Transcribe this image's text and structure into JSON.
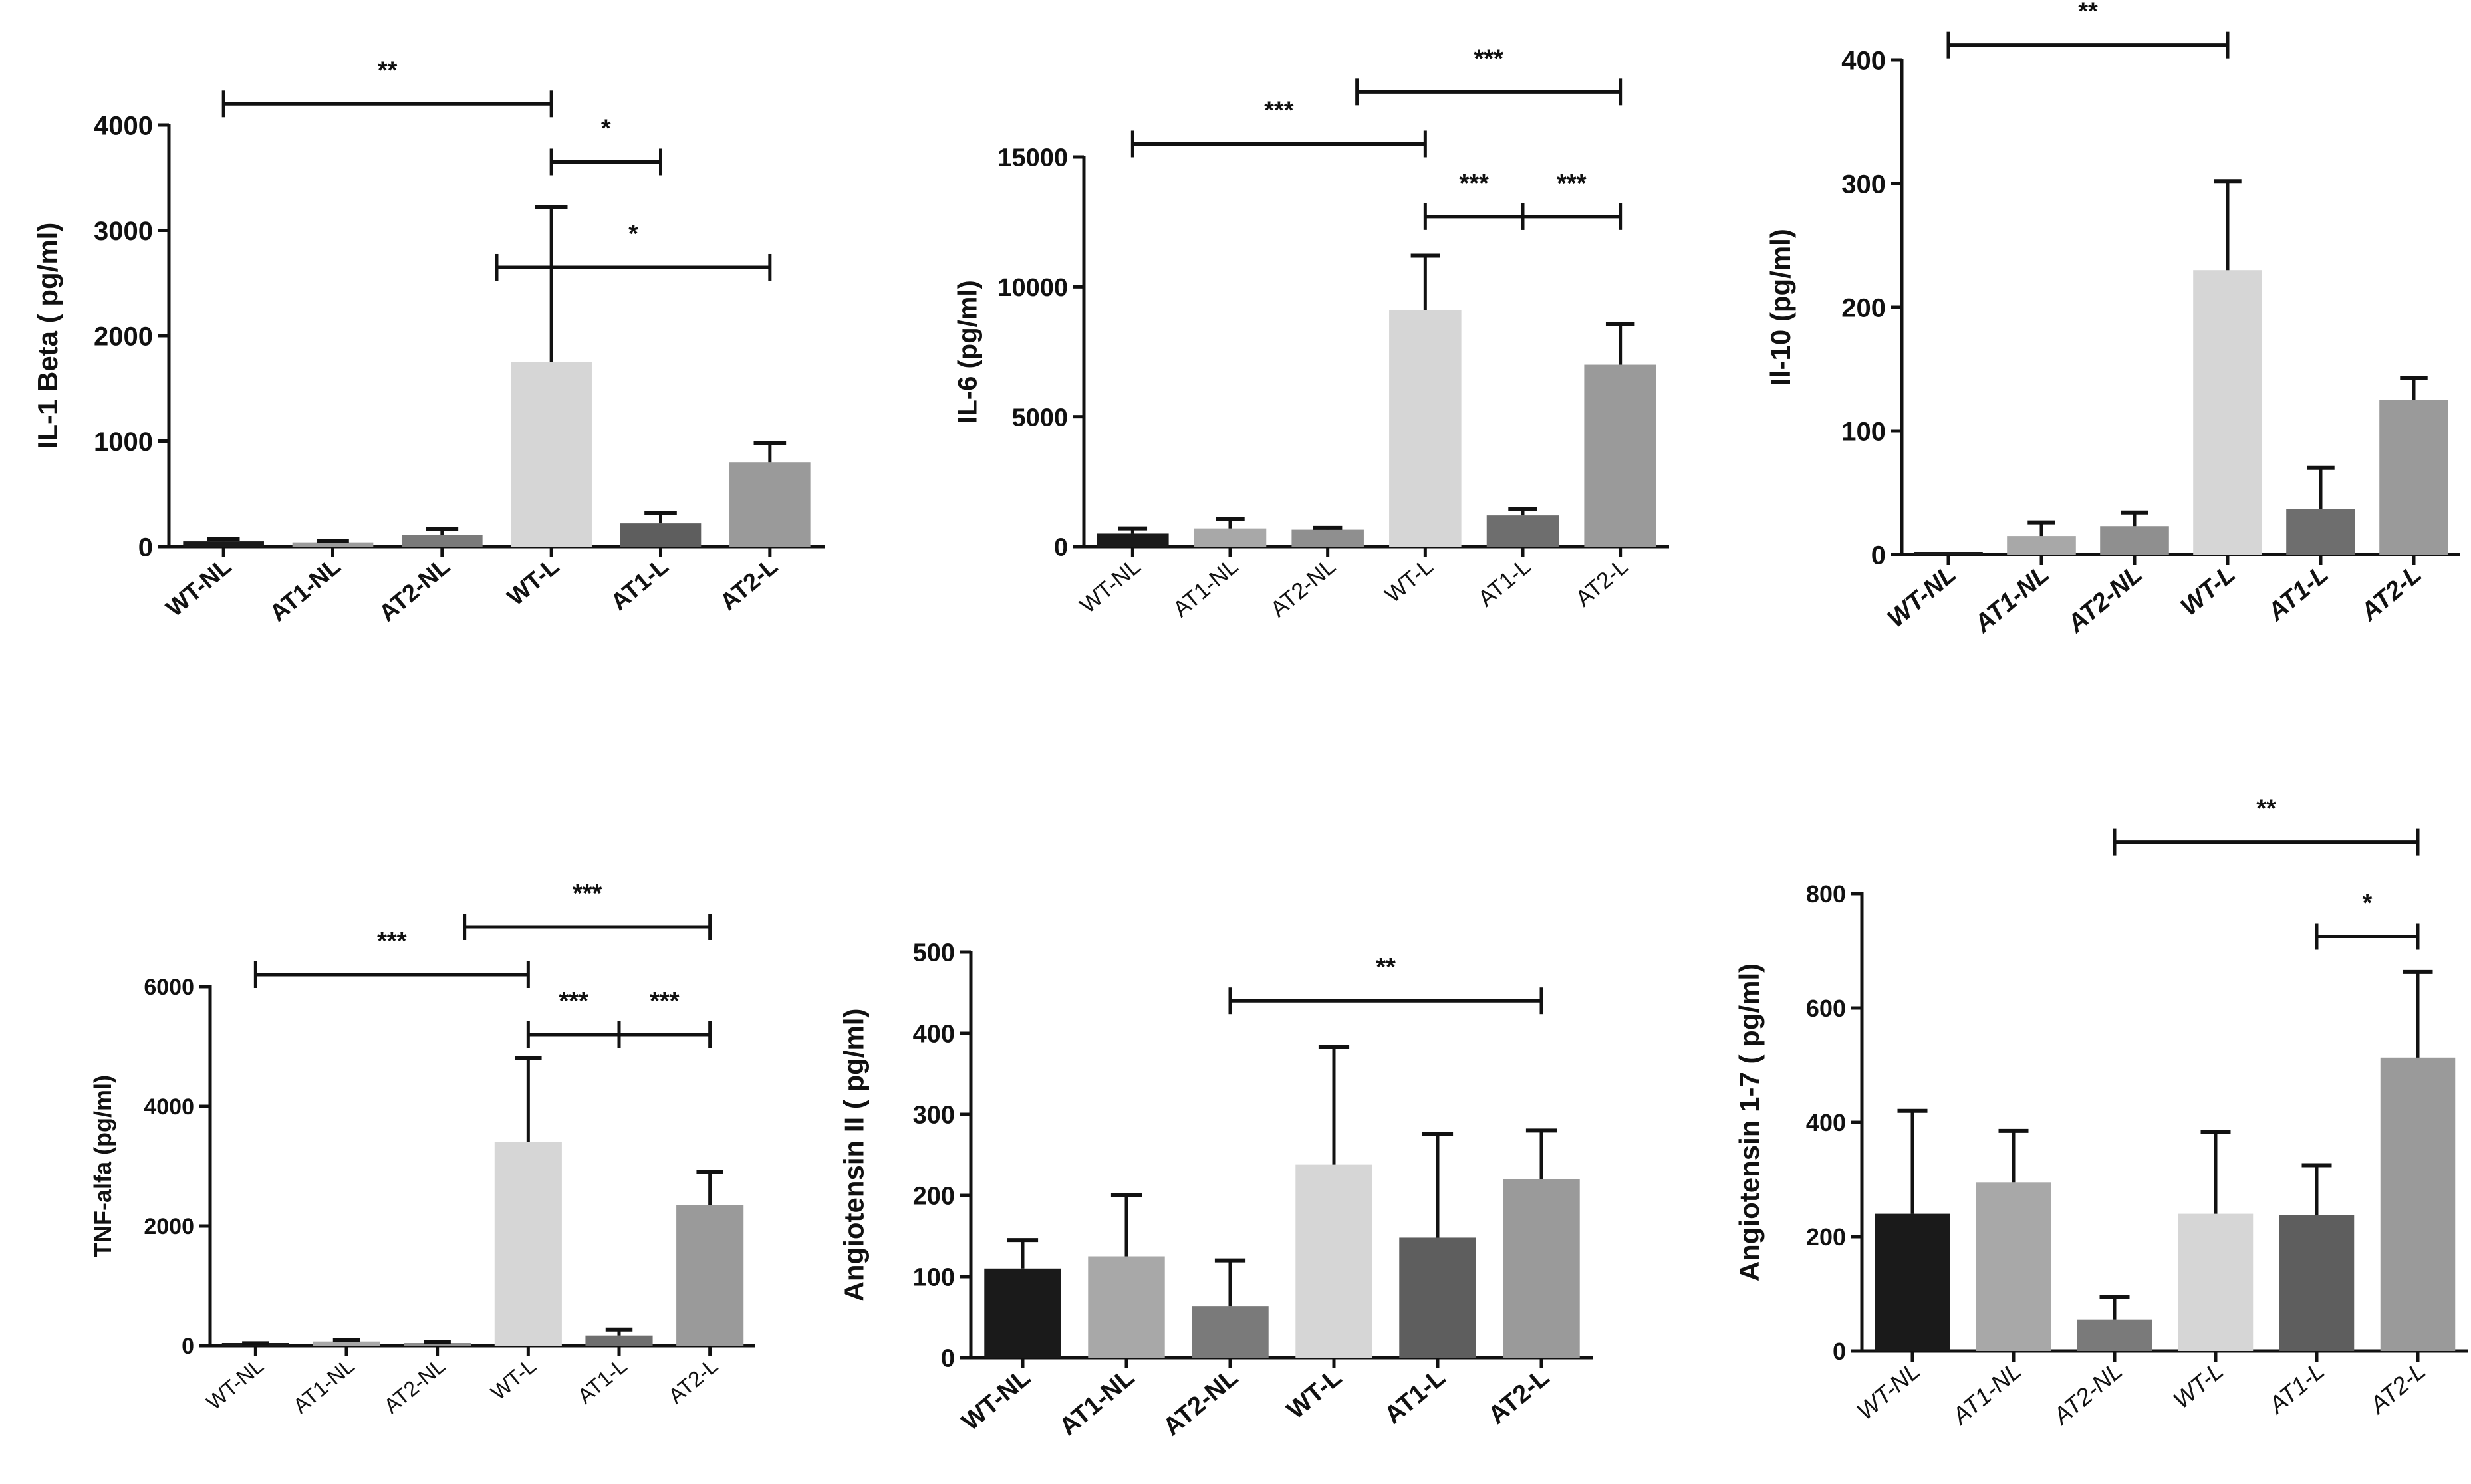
{
  "figure": {
    "charts": [
      {
        "id": "il1b",
        "type": "bar",
        "ylabel": "IL-1 Beta ( pg/ml)",
        "ylim": [
          0,
          4000
        ],
        "yticks": [
          0,
          1000,
          2000,
          3000,
          4000
        ],
        "categories": [
          "WT-NL",
          "AT1-NL",
          "AT2-NL",
          "WT-L",
          "AT1-L",
          "AT2-L"
        ],
        "values": [
          50,
          40,
          110,
          1750,
          220,
          800
        ],
        "errors": [
          20,
          15,
          60,
          1470,
          100,
          180
        ],
        "colors": [
          "#1a1a1a",
          "#9b9b9b",
          "#7a7a7a",
          "#d6d6d6",
          "#5e5e5e",
          "#9a9a9a"
        ],
        "label_style": "bold",
        "significance": [
          {
            "from": 0,
            "to": 3,
            "level": 4200,
            "label": "**"
          },
          {
            "from": 3,
            "to": 4,
            "level": 3650,
            "label": "*"
          },
          {
            "from": 2.5,
            "to": 5,
            "level": 2650,
            "label": "*"
          }
        ]
      },
      {
        "id": "il6",
        "type": "bar",
        "ylabel": "IL-6 (pg/ml)",
        "ylim": [
          0,
          15000
        ],
        "yticks": [
          0,
          5000,
          10000,
          15000
        ],
        "categories": [
          "WT-NL",
          "AT1-NL",
          "AT2-NL",
          "WT-L",
          "AT1-L",
          "AT2-L"
        ],
        "values": [
          500,
          700,
          650,
          9100,
          1200,
          7000
        ],
        "errors": [
          200,
          350,
          70,
          2100,
          250,
          1550
        ],
        "colors": [
          "#1a1a1a",
          "#a8a8a8",
          "#8f8f8f",
          "#d6d6d6",
          "#6e6e6e",
          "#9a9a9a"
        ],
        "label_style": "normal",
        "significance": [
          {
            "from": 0,
            "to": 3,
            "level": 15500,
            "label": "***"
          },
          {
            "from": 2.3,
            "to": 5,
            "level": 17500,
            "label": "***"
          },
          {
            "from": 3,
            "to": 4,
            "level": 12700,
            "label": "***"
          },
          {
            "from": 4,
            "to": 5,
            "level": 12700,
            "label": "***"
          }
        ]
      },
      {
        "id": "il10",
        "type": "bar",
        "ylabel": "Il-10 (pg/ml)",
        "ylim": [
          0,
          400
        ],
        "yticks": [
          0,
          100,
          200,
          300,
          400
        ],
        "categories": [
          "WT-NL",
          "AT1-NL",
          "AT2-NL",
          "WT-L",
          "AT1-L",
          "AT2-L"
        ],
        "values": [
          2,
          15,
          23,
          230,
          37,
          125
        ],
        "errors": [
          0,
          11,
          11,
          72,
          33,
          18
        ],
        "colors": [
          "#1a1a1a",
          "#a8a8a8",
          "#8f8f8f",
          "#d6d6d6",
          "#6e6e6e",
          "#9a9a9a"
        ],
        "label_style": "bolditalic",
        "significance": [
          {
            "from": 0,
            "to": 3,
            "level": 412,
            "label": "**"
          }
        ]
      },
      {
        "id": "tnf",
        "type": "bar",
        "ylabel": "TNF-alfa (pg/ml)",
        "ylim": [
          0,
          6000
        ],
        "yticks": [
          0,
          2000,
          4000,
          6000
        ],
        "categories": [
          "WT-NL",
          "AT1-NL",
          "AT2-NL",
          "WT-L",
          "AT1-L",
          "AT2-L"
        ],
        "values": [
          30,
          70,
          40,
          3400,
          170,
          2350
        ],
        "errors": [
          10,
          20,
          15,
          1400,
          100,
          550
        ],
        "colors": [
          "#1a1a1a",
          "#a8a8a8",
          "#8f8f8f",
          "#d6d6d6",
          "#6e6e6e",
          "#9a9a9a"
        ],
        "label_style": "normal",
        "significance": [
          {
            "from": 0,
            "to": 3,
            "level": 6200,
            "label": "***"
          },
          {
            "from": 2.3,
            "to": 5,
            "level": 7000,
            "label": "***"
          },
          {
            "from": 3,
            "to": 4,
            "level": 5200,
            "label": "***"
          },
          {
            "from": 4,
            "to": 5,
            "level": 5200,
            "label": "***"
          }
        ]
      },
      {
        "id": "ang2",
        "type": "bar",
        "ylabel": "Angiotensin II ( pg/ml)",
        "ylim": [
          0,
          500
        ],
        "yticks": [
          0,
          100,
          200,
          300,
          400,
          500
        ],
        "categories": [
          "WT-NL",
          "AT1-NL",
          "AT2-NL",
          "WT-L",
          "AT1-L",
          "AT2-L"
        ],
        "values": [
          110,
          125,
          63,
          238,
          148,
          220
        ],
        "errors": [
          35,
          75,
          57,
          145,
          128,
          60
        ],
        "colors": [
          "#1a1a1a",
          "#a8a8a8",
          "#7a7a7a",
          "#d6d6d6",
          "#5e5e5e",
          "#9a9a9a"
        ],
        "label_style": "bold",
        "significance": [
          {
            "from": 2,
            "to": 5,
            "level": 440,
            "label": "**"
          }
        ]
      },
      {
        "id": "ang17",
        "type": "bar",
        "ylabel": "Angiotensin 1-7 ( pg/ml)",
        "ylim": [
          0,
          800
        ],
        "yticks": [
          0,
          200,
          400,
          600,
          800
        ],
        "categories": [
          "WT-NL",
          "AT1-NL",
          "AT2-NL",
          "WT-L",
          "AT1-L",
          "AT2-L"
        ],
        "values": [
          240,
          295,
          55,
          240,
          238,
          513
        ],
        "errors": [
          180,
          90,
          40,
          143,
          87,
          150
        ],
        "colors": [
          "#1a1a1a",
          "#a8a8a8",
          "#7a7a7a",
          "#d6d6d6",
          "#5e5e5e",
          "#9a9a9a"
        ],
        "label_style": "italic",
        "significance": [
          {
            "from": 2,
            "to": 5,
            "level": 890,
            "label": "**"
          },
          {
            "from": 4,
            "to": 5,
            "level": 725,
            "label": "*"
          }
        ]
      }
    ]
  },
  "chart_data": [
    {
      "type": "bar",
      "title": "",
      "xlabel": "",
      "ylabel": "IL-1 Beta ( pg/ml)",
      "ylim": [
        0,
        4000
      ],
      "categories": [
        "WT-NL",
        "AT1-NL",
        "AT2-NL",
        "WT-L",
        "AT1-L",
        "AT2-L"
      ],
      "values": [
        50,
        40,
        110,
        1750,
        220,
        800
      ],
      "errors": [
        20,
        15,
        60,
        1470,
        100,
        180
      ]
    },
    {
      "type": "bar",
      "title": "",
      "xlabel": "",
      "ylabel": "IL-6 (pg/ml)",
      "ylim": [
        0,
        15000
      ],
      "categories": [
        "WT-NL",
        "AT1-NL",
        "AT2-NL",
        "WT-L",
        "AT1-L",
        "AT2-L"
      ],
      "values": [
        500,
        700,
        650,
        9100,
        1200,
        7000
      ],
      "errors": [
        200,
        350,
        70,
        2100,
        250,
        1550
      ]
    },
    {
      "type": "bar",
      "title": "",
      "xlabel": "",
      "ylabel": "Il-10 (pg/ml)",
      "ylim": [
        0,
        400
      ],
      "categories": [
        "WT-NL",
        "AT1-NL",
        "AT2-NL",
        "WT-L",
        "AT1-L",
        "AT2-L"
      ],
      "values": [
        2,
        15,
        23,
        230,
        37,
        125
      ],
      "errors": [
        0,
        11,
        11,
        72,
        33,
        18
      ]
    },
    {
      "type": "bar",
      "title": "",
      "xlabel": "",
      "ylabel": "TNF-alfa (pg/ml)",
      "ylim": [
        0,
        6000
      ],
      "categories": [
        "WT-NL",
        "AT1-NL",
        "AT2-NL",
        "WT-L",
        "AT1-L",
        "AT2-L"
      ],
      "values": [
        30,
        70,
        40,
        3400,
        170,
        2350
      ],
      "errors": [
        10,
        20,
        15,
        1400,
        100,
        550
      ]
    },
    {
      "type": "bar",
      "title": "",
      "xlabel": "",
      "ylabel": "Angiotensin II ( pg/ml)",
      "ylim": [
        0,
        500
      ],
      "categories": [
        "WT-NL",
        "AT1-NL",
        "AT2-NL",
        "WT-L",
        "AT1-L",
        "AT2-L"
      ],
      "values": [
        110,
        125,
        63,
        238,
        148,
        220
      ],
      "errors": [
        35,
        75,
        57,
        145,
        128,
        60
      ]
    },
    {
      "type": "bar",
      "title": "",
      "xlabel": "",
      "ylabel": "Angiotensin 1-7 ( pg/ml)",
      "ylim": [
        0,
        800
      ],
      "categories": [
        "WT-NL",
        "AT1-NL",
        "AT2-NL",
        "WT-L",
        "AT1-L",
        "AT2-L"
      ],
      "values": [
        240,
        295,
        55,
        240,
        238,
        513
      ],
      "errors": [
        180,
        90,
        40,
        143,
        87,
        150
      ]
    }
  ]
}
